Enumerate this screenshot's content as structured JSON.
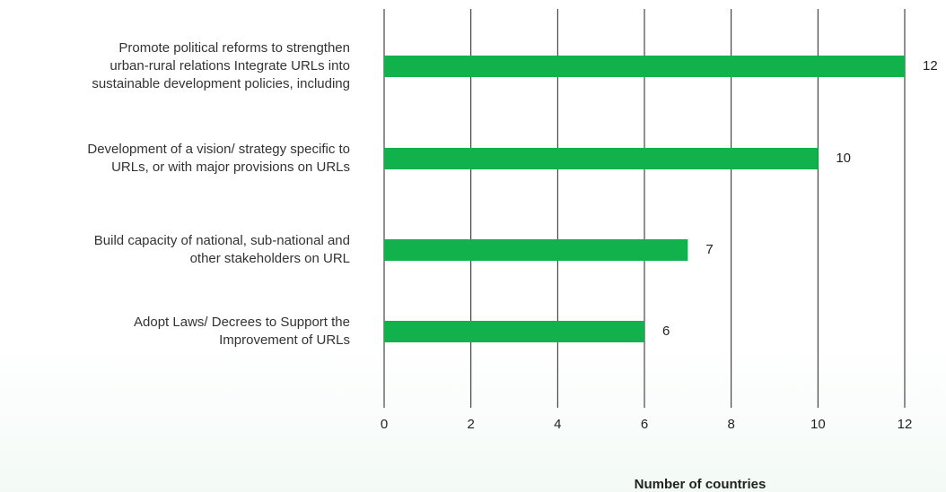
{
  "chart_data": {
    "type": "bar",
    "orientation": "horizontal",
    "categories": [
      "Promote political reforms to strengthen\nurban-rural relations Integrate URLs into\nsustainable development policies, including",
      "Development of a vision/ strategy specific to\nURLs, or with major provisions on URLs",
      "Build capacity of national, sub-national and\nother stakeholders on URL",
      "Adopt Laws/ Decrees to Support the\nImprovement of URLs"
    ],
    "values": [
      12,
      10,
      7,
      6
    ],
    "color": "#11b24b",
    "xlabel": "Number of countries",
    "xlim": [
      0,
      12
    ],
    "xticks": [
      0,
      2,
      4,
      6,
      8,
      10,
      12
    ],
    "grid": true
  }
}
